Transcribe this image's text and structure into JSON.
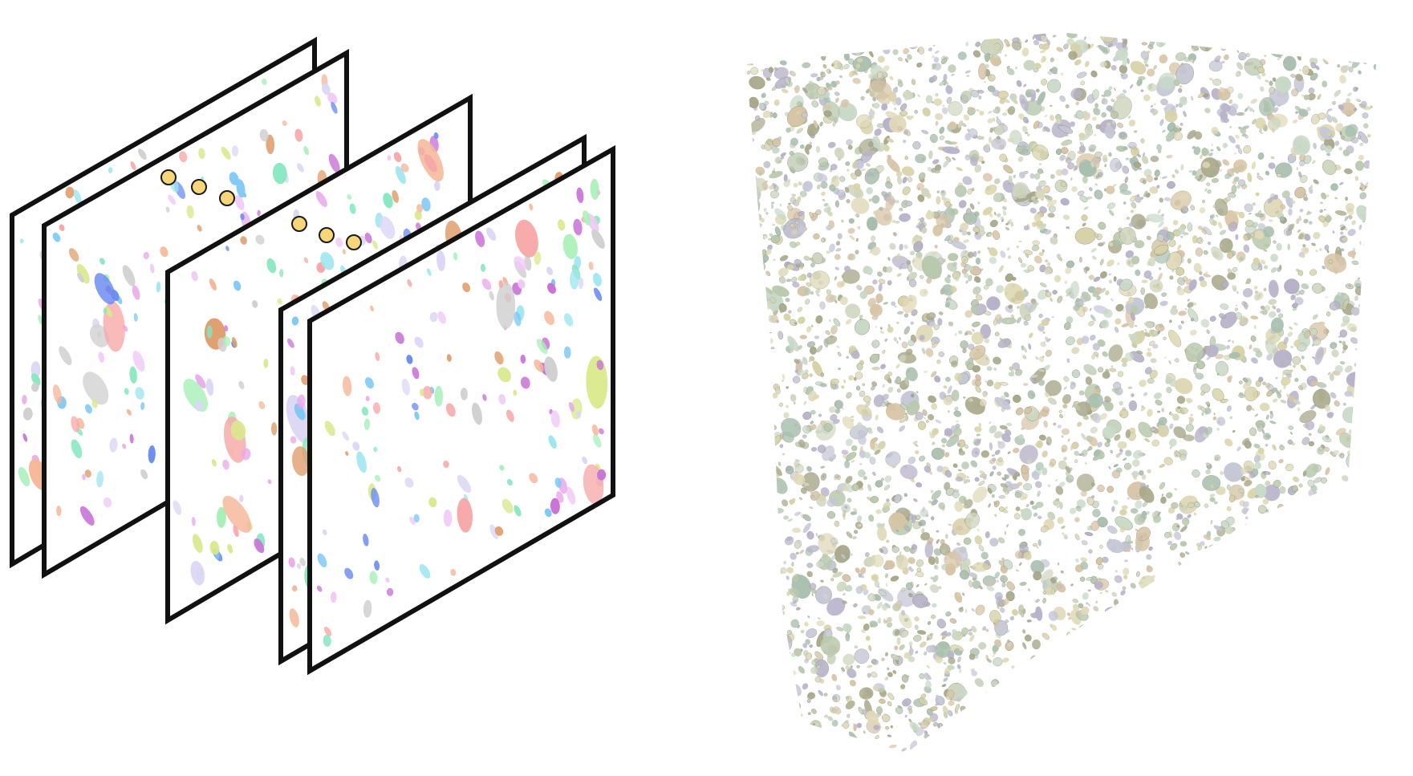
{
  "figure": {
    "left_panel": {
      "slice_count": 5,
      "ellipsis_groups": 2,
      "dots_per_group": 3,
      "frame_color": "#111111",
      "slice_fill": "#ffffff",
      "dot_fill": "#f7d679",
      "dot_stroke": "#1a1a1a"
    },
    "right_panel": {
      "palette": [
        "#d8d2a8",
        "#b9c9ad",
        "#c5c7d6",
        "#d7c4a6",
        "#a8bfae",
        "#cfd6bf",
        "#b7b2c9",
        "#e0d9b8",
        "#c8d9c7",
        "#a9a88a"
      ]
    },
    "blob_palette": [
      "#f7a8a8",
      "#7ec8f5",
      "#6b8cf0",
      "#c872d6",
      "#86e8c0",
      "#e8a8e8",
      "#f5b89a",
      "#d9e88a",
      "#9ee6f0",
      "#f0c8f5",
      "#ddd7f5",
      "#e0a070",
      "#d0d0d0",
      "#a8f0b8"
    ]
  }
}
